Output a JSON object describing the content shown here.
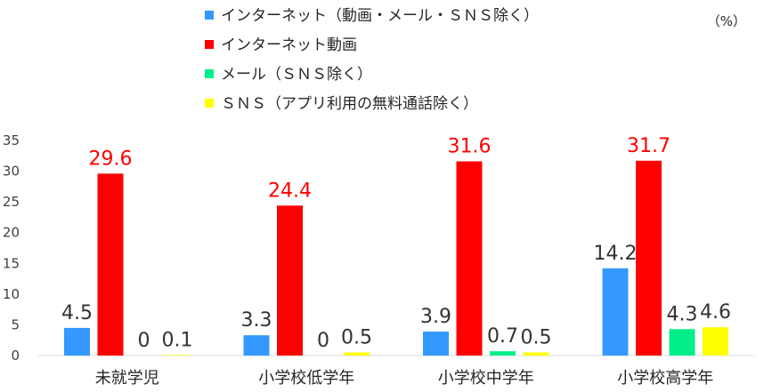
{
  "chart_data": {
    "type": "bar",
    "unit_label": "（%）",
    "categories": [
      "未就学児",
      "小学校低学年",
      "小学校中学年",
      "小学校高学年"
    ],
    "series": [
      {
        "name": "インターネット（動画・メール・ＳＮＳ除く）",
        "color": "#3399ff",
        "label_color": "#333333",
        "values": [
          4.5,
          3.3,
          3.9,
          14.2
        ]
      },
      {
        "name": "インターネット動画",
        "color": "#ff0000",
        "label_color": "#ff0000",
        "values": [
          29.6,
          24.4,
          31.6,
          31.7
        ]
      },
      {
        "name": "メール（ＳＮＳ除く）",
        "color": "#00ee88",
        "label_color": "#333333",
        "values": [
          0,
          0,
          0.7,
          4.3
        ]
      },
      {
        "name": "ＳＮＳ（アプリ利用の無料通話除く）",
        "color": "#ffff00",
        "label_color": "#333333",
        "values": [
          0.1,
          0.5,
          0.5,
          4.6
        ]
      }
    ],
    "ylim": [
      0,
      35
    ],
    "yticks": [
      0,
      5,
      10,
      15,
      20,
      25,
      30,
      35
    ],
    "grid": false,
    "legend_position": "top-left"
  }
}
